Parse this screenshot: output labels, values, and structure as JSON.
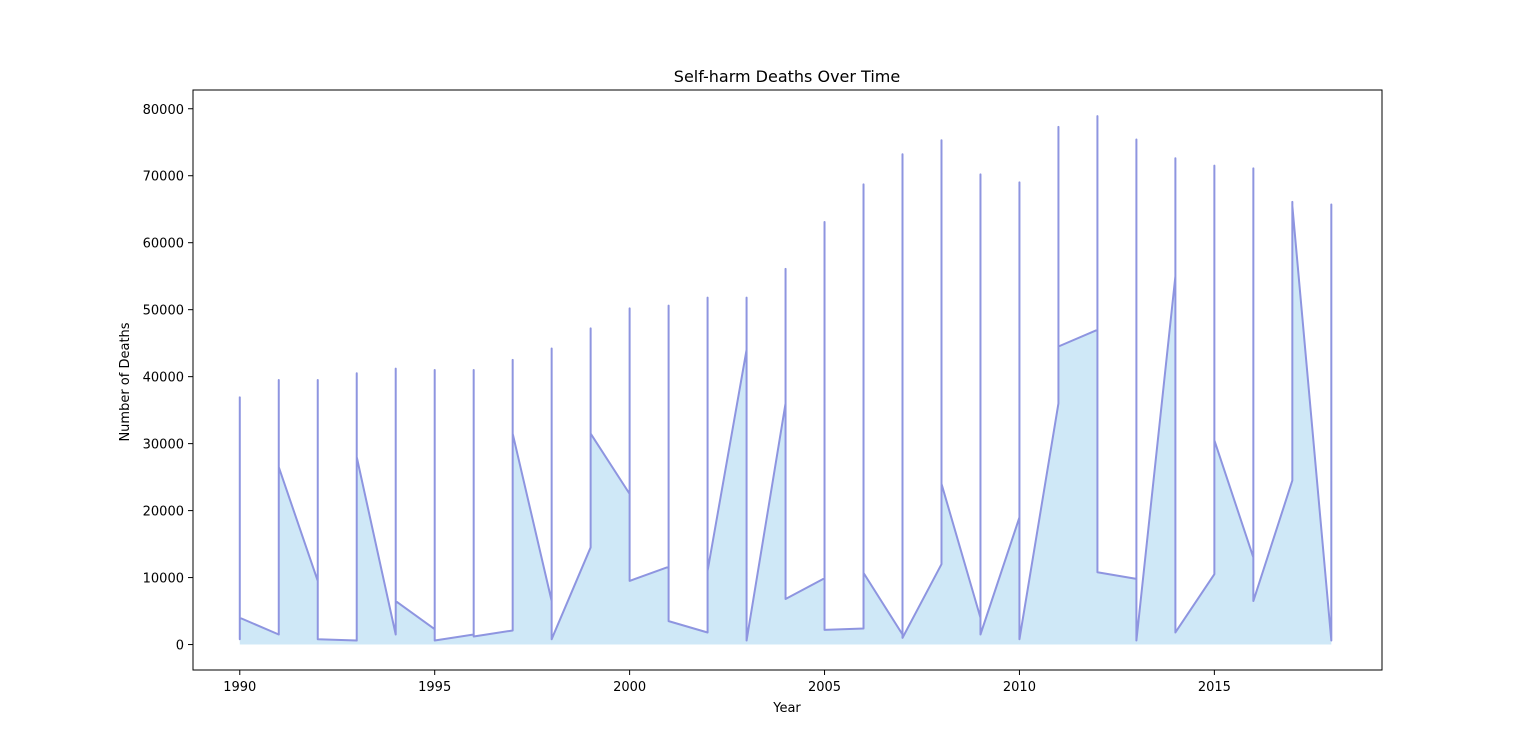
{
  "chart_data": {
    "type": "area",
    "title": "Self-harm Deaths Over Time",
    "xlabel": "Year",
    "ylabel": "Number of Deaths",
    "xlim": [
      1988.8,
      2019.3
    ],
    "ylim": [
      -3800,
      82800
    ],
    "xticks": [
      1990,
      1995,
      2000,
      2005,
      2010,
      2015
    ],
    "yticks": [
      0,
      10000,
      20000,
      30000,
      40000,
      50000,
      60000,
      70000,
      80000
    ],
    "grid": false,
    "legend": "none",
    "colors": {
      "fill": "#cfe8f7",
      "line": "#8e95e0"
    },
    "series_description": "Line drawn through every record in file order; records grouped by year, multiple values per year",
    "years": [
      {
        "year": 1990,
        "values": [
          37000,
          800,
          4000
        ]
      },
      {
        "year": 1991,
        "values": [
          1500,
          39500,
          26500
        ]
      },
      {
        "year": 1992,
        "values": [
          9500,
          39500,
          800
        ]
      },
      {
        "year": 1993,
        "values": [
          600,
          40500,
          28000
        ]
      },
      {
        "year": 1994,
        "values": [
          1500,
          41200,
          6500
        ]
      },
      {
        "year": 1995,
        "values": [
          2300,
          41000,
          600
        ]
      },
      {
        "year": 1996,
        "values": [
          1500,
          41000,
          1200
        ]
      },
      {
        "year": 1997,
        "values": [
          2100,
          42500,
          31500
        ]
      },
      {
        "year": 1998,
        "values": [
          6500,
          44200,
          800
        ]
      },
      {
        "year": 1999,
        "values": [
          14500,
          47200,
          31500
        ]
      },
      {
        "year": 2000,
        "values": [
          22500,
          50200,
          9500
        ]
      },
      {
        "year": 2001,
        "values": [
          11600,
          50600,
          3500
        ]
      },
      {
        "year": 2002,
        "values": [
          1800,
          51800,
          11000
        ]
      },
      {
        "year": 2003,
        "values": [
          44000,
          51800,
          600
        ]
      },
      {
        "year": 2004,
        "values": [
          36000,
          56100,
          6800
        ]
      },
      {
        "year": 2005,
        "values": [
          9900,
          63100,
          2200
        ]
      },
      {
        "year": 2006,
        "values": [
          2400,
          68700,
          10700
        ]
      },
      {
        "year": 2007,
        "values": [
          1500,
          73200,
          1000
        ]
      },
      {
        "year": 2008,
        "values": [
          12000,
          75300,
          24000
        ]
      },
      {
        "year": 2009,
        "values": [
          4000,
          70200,
          1500
        ]
      },
      {
        "year": 2010,
        "values": [
          19000,
          69000,
          800
        ]
      },
      {
        "year": 2011,
        "values": [
          36000,
          77300,
          44500
        ]
      },
      {
        "year": 2012,
        "values": [
          47000,
          78900,
          10800
        ]
      },
      {
        "year": 2013,
        "values": [
          9800,
          75400,
          600
        ]
      },
      {
        "year": 2014,
        "values": [
          55000,
          72600,
          1800
        ]
      },
      {
        "year": 2015,
        "values": [
          10500,
          71500,
          30500
        ]
      },
      {
        "year": 2016,
        "values": [
          13000,
          71100,
          6500
        ]
      },
      {
        "year": 2017,
        "values": [
          24500,
          66100,
          65500
        ]
      },
      {
        "year": 2018,
        "values": [
          600,
          65700,
          600
        ]
      }
    ]
  }
}
